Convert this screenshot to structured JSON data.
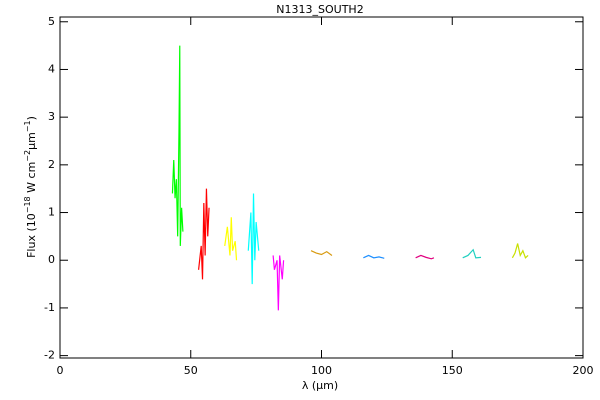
{
  "chart_data": {
    "type": "line",
    "title": "N1313_SOUTH2",
    "xlabel": [
      "λ (",
      "μm",
      ")"
    ],
    "ylabel": [
      {
        "text": "Flux (10"
      },
      {
        "text": "−18",
        "sup": true
      },
      {
        "text": " W cm"
      },
      {
        "text": "−2",
        "sup": true
      },
      {
        "text": "μm"
      },
      {
        "text": "−1",
        "sup": true
      },
      {
        "text": ")"
      }
    ],
    "xlim": [
      0,
      200
    ],
    "xticks": [
      0,
      50,
      100,
      150,
      200
    ],
    "ylim": [
      -2.05,
      5.1
    ],
    "yticks": [
      -2,
      -1,
      0,
      1,
      2,
      3,
      4,
      5
    ],
    "series": [
      {
        "color": "#00ff00",
        "x": [
          43,
          43.5,
          44,
          44.5,
          45,
          45.5,
          45.8,
          46,
          46.5,
          47
        ],
        "values": [
          1.4,
          2.1,
          1.3,
          1.7,
          0.5,
          2.7,
          4.5,
          0.3,
          1.1,
          0.6
        ]
      },
      {
        "color": "#ff0000",
        "x": [
          53,
          54,
          54.5,
          55,
          55.5,
          56,
          56.5,
          57
        ],
        "values": [
          -0.2,
          0.3,
          -0.4,
          1.2,
          0.1,
          1.5,
          0.5,
          1.1
        ]
      },
      {
        "color": "#ffff00",
        "x": [
          63,
          64,
          65,
          65.5,
          66,
          67,
          67.5
        ],
        "values": [
          0.3,
          0.7,
          0.1,
          0.9,
          0.2,
          0.4,
          0.0
        ]
      },
      {
        "color": "#00ffff",
        "x": [
          72,
          73,
          73.5,
          74,
          74.5,
          75,
          76
        ],
        "values": [
          0.2,
          1.0,
          -0.5,
          1.4,
          0.0,
          0.8,
          0.2
        ]
      },
      {
        "color": "#ff00ff",
        "x": [
          81.5,
          82,
          83,
          83.5,
          84,
          85,
          85.5
        ],
        "values": [
          0.1,
          -0.2,
          0.0,
          -1.05,
          0.1,
          -0.4,
          0.0
        ]
      },
      {
        "color": "#d89a10",
        "x": [
          96,
          98,
          100,
          102,
          104
        ],
        "values": [
          0.2,
          0.15,
          0.12,
          0.18,
          0.1
        ]
      },
      {
        "color": "#1e8fff",
        "x": [
          116,
          118,
          120,
          122,
          124
        ],
        "values": [
          0.05,
          0.1,
          0.05,
          0.07,
          0.04
        ]
      },
      {
        "color": "#e0007f",
        "x": [
          136,
          138,
          140,
          142,
          143
        ],
        "values": [
          0.05,
          0.1,
          0.06,
          0.03,
          0.05
        ]
      },
      {
        "color": "#20d0c0",
        "x": [
          154,
          156,
          158,
          159,
          161
        ],
        "values": [
          0.05,
          0.1,
          0.22,
          0.05,
          0.06
        ]
      },
      {
        "color": "#c8e000",
        "x": [
          173,
          174,
          175,
          176,
          177,
          178,
          179
        ],
        "values": [
          0.05,
          0.15,
          0.35,
          0.1,
          0.2,
          0.05,
          0.1
        ]
      }
    ]
  }
}
